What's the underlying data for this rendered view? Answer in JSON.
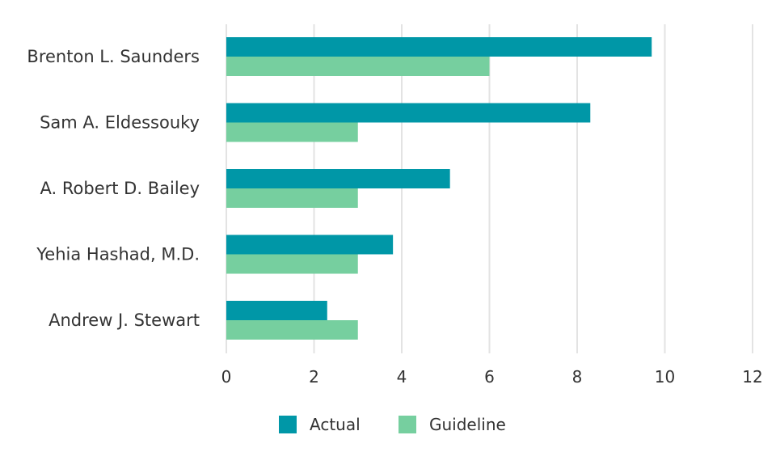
{
  "chart_data": {
    "type": "bar",
    "orientation": "horizontal",
    "categories": [
      "Brenton L. Saunders",
      "Sam A. Eldessouky",
      "A. Robert D. Bailey",
      "Yehia Hashad, M.D.",
      "Andrew J. Stewart"
    ],
    "series": [
      {
        "name": "Actual",
        "color": "#0097A7",
        "values": [
          9.7,
          8.3,
          5.1,
          3.8,
          2.3
        ]
      },
      {
        "name": "Guideline",
        "color": "#76CF9F",
        "values": [
          6,
          3,
          3,
          3,
          3
        ]
      }
    ],
    "xlim": [
      0,
      12
    ],
    "xticks": [
      0,
      2,
      4,
      6,
      8,
      10,
      12
    ],
    "title": "",
    "xlabel": "",
    "ylabel": "",
    "grid": "vertical",
    "legend": "bottom-center"
  }
}
